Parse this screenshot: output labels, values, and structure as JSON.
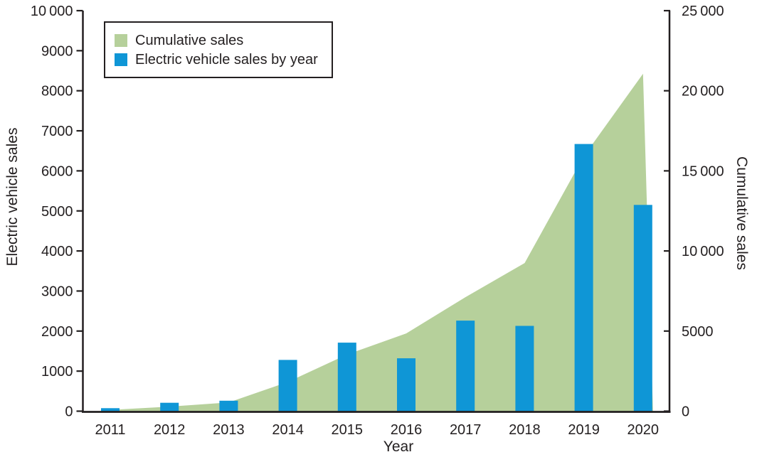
{
  "chart_data": {
    "type": "bar",
    "subtype": "combo-bar-area-dual-axis",
    "title": "",
    "categories": [
      "2011",
      "2012",
      "2013",
      "2014",
      "2015",
      "2016",
      "2017",
      "2018",
      "2019",
      "2020"
    ],
    "series": [
      {
        "name": "Cumulative sales",
        "type": "area",
        "axis": "right",
        "color": "#b6d09b",
        "values": [
          75,
          285,
          545,
          1825,
          3535,
          4855,
          7115,
          9245,
          15915,
          21065
        ]
      },
      {
        "name": "Electric vehicle sales by year",
        "type": "bar",
        "axis": "left",
        "color": "#0f96d6",
        "values": [
          75,
          210,
          260,
          1280,
          1710,
          1320,
          2260,
          2130,
          6670,
          5150
        ]
      }
    ],
    "xlabel": "Year",
    "left_axis": {
      "label": "Electric vehicle sales",
      "min": 0,
      "max": 10000,
      "tick_step": 1000,
      "tick_values": [
        0,
        1000,
        2000,
        3000,
        4000,
        5000,
        6000,
        7000,
        8000,
        9000,
        10000
      ],
      "tick_labels": [
        "0",
        "1000",
        "2000",
        "3000",
        "4000",
        "5000",
        "6000",
        "7000",
        "8000",
        "9000",
        "10 000"
      ]
    },
    "right_axis": {
      "label": "Cumulative sales",
      "min": 0,
      "max": 25000,
      "tick_step": 5000,
      "tick_values": [
        0,
        5000,
        10000,
        15000,
        20000,
        25000
      ],
      "tick_labels": [
        "0",
        "5000",
        "10 000",
        "15 000",
        "20 000",
        "25 000"
      ]
    },
    "legend": {
      "position": "top-left",
      "entries": [
        "Cumulative sales",
        "Electric vehicle sales by year"
      ]
    },
    "grid": false
  },
  "colors": {
    "bar": "#0f96d6",
    "area": "#b6d09b",
    "axis": "#231f20",
    "text": "#231f20",
    "background": "#ffffff"
  }
}
